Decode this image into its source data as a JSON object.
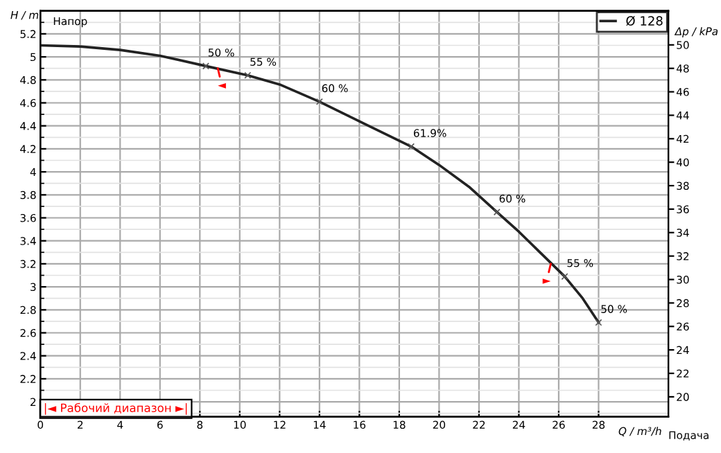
{
  "chart_data": {
    "type": "line",
    "x": [
      0,
      2,
      4,
      6,
      8.3,
      10.4,
      12,
      14,
      16,
      18.6,
      20,
      21.5,
      22.9,
      24,
      25,
      26.3,
      27.2,
      28
    ],
    "series": [
      {
        "name": "Ø 128",
        "color": "#222222",
        "values": [
          5.1,
          5.09,
          5.06,
          5.01,
          4.92,
          4.84,
          4.76,
          4.61,
          4.44,
          4.22,
          4.06,
          3.87,
          3.65,
          3.48,
          3.31,
          3.09,
          2.9,
          2.69
        ]
      }
    ],
    "xlim": [
      0,
      31.5
    ],
    "ylim": [
      1.87,
      5.4
    ],
    "y2lim": [
      18.3,
      52.9
    ],
    "xticks": [
      0,
      2,
      4,
      6,
      8,
      10,
      12,
      14,
      16,
      18,
      20,
      22,
      24,
      26,
      28
    ],
    "yticks": [
      2,
      2.2,
      2.4,
      2.6,
      2.8,
      3,
      3.2,
      3.4,
      3.6,
      3.8,
      4,
      4.2,
      4.4,
      4.6,
      4.8,
      5,
      5.2
    ],
    "y2ticks": [
      20,
      22,
      24,
      26,
      28,
      30,
      32,
      34,
      36,
      38,
      40,
      42,
      44,
      46,
      48,
      50
    ],
    "xlabel": "Q / m³/h",
    "ylabel": "H / m",
    "y2label": "Δp / kPa",
    "annotations": [
      {
        "text": "◄",
        "x": 8.9,
        "y": 4.9
      },
      {
        "text": "►",
        "x": 25.6,
        "y": 3.2
      },
      {
        "text": "50 %",
        "x": 8.3,
        "y": 4.92
      },
      {
        "text": "55 %",
        "x": 10.4,
        "y": 4.84
      },
      {
        "text": "60 %",
        "x": 14,
        "y": 4.61
      },
      {
        "text": "61.9%",
        "x": 18.6,
        "y": 4.22
      },
      {
        "text": "60 %",
        "x": 22.9,
        "y": 3.65
      },
      {
        "text": "55 %",
        "x": 26.3,
        "y": 3.09
      },
      {
        "text": "50 %",
        "x": 28,
        "y": 2.69
      },
      "Напор",
      "Подача",
      "|◄ Рабочий диапазон ►|"
    ],
    "grid": true,
    "legend": "top right",
    "marker": "none",
    "line_style": "solid"
  }
}
